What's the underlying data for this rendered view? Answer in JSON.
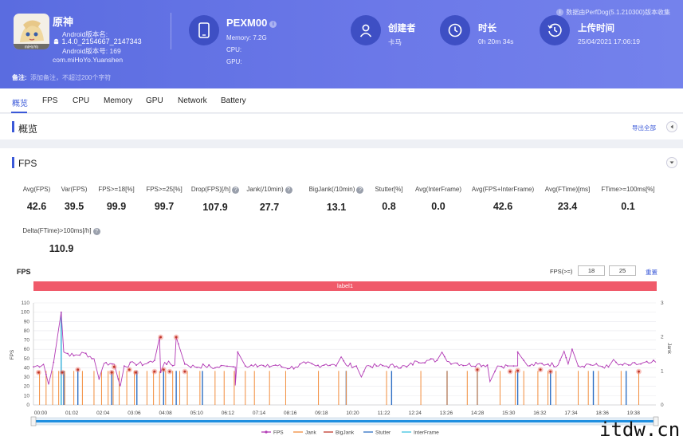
{
  "app": {
    "name": "原神",
    "android_version_label": "Android版本名:",
    "version_name": "1.4.0_2154667_2147343",
    "version_code_label": "Android版本号: 169",
    "package": "com.miHoYo.Yuanshen",
    "icon_text": "miHoYo"
  },
  "device": {
    "name": "PEXM00",
    "memory": "Memory: 7.2G",
    "cpu": "CPU:",
    "gpu": "GPU:"
  },
  "creator": {
    "title": "创建者",
    "value": "卡马"
  },
  "duration": {
    "title": "时长",
    "value": "0h 20m 34s"
  },
  "upload": {
    "title": "上传时间",
    "value": "25/04/2021 17:06:19"
  },
  "data_source": "数据由PerfDog(5.1.210300)版本收集",
  "note": {
    "label": "备注:",
    "placeholder": "添加备注，不超过200个字符"
  },
  "tabs": [
    "概览",
    "FPS",
    "CPU",
    "Memory",
    "GPU",
    "Network",
    "Battery"
  ],
  "overview": {
    "title": "概览",
    "export_label": "导出全部"
  },
  "fps_section": {
    "title": "FPS"
  },
  "metrics": [
    {
      "label": "Avg(FPS)",
      "value": "42.6",
      "help": false
    },
    {
      "label": "Var(FPS)",
      "value": "39.5",
      "help": false
    },
    {
      "label": "FPS>=18[%]",
      "value": "99.9",
      "help": false
    },
    {
      "label": "FPS>=25[%]",
      "value": "99.7",
      "help": false
    },
    {
      "label": "Drop(FPS)[/h]",
      "value": "107.9",
      "help": true
    },
    {
      "label": "Jank(/10min)",
      "value": "27.7",
      "help": true
    },
    {
      "label": "BigJank(/10min)",
      "value": "13.1",
      "help": true
    },
    {
      "label": "Stutter[%]",
      "value": "0.8",
      "help": false
    },
    {
      "label": "Avg(InterFrame)",
      "value": "0.0",
      "help": false
    },
    {
      "label": "Avg(FPS+InterFrame)",
      "value": "42.6",
      "help": false
    },
    {
      "label": "Avg(FTime)[ms]",
      "value": "23.4",
      "help": false
    },
    {
      "label": "FTime>=100ms[%]",
      "value": "0.1",
      "help": false
    },
    {
      "label": "Delta(FTime)>100ms[/h]",
      "value": "110.9",
      "help": true
    }
  ],
  "fps_threshold": {
    "label": "FPS(>=)",
    "value1": "18",
    "value2": "25",
    "reset_label": "重置"
  },
  "chart_data": {
    "type": "line",
    "title": "FPS",
    "label_bar": "label1",
    "ylabel": "FPS",
    "y2label": "Jank",
    "ylim": [
      0,
      110
    ],
    "y2lim": [
      0,
      3
    ],
    "yticks": [
      0,
      10,
      20,
      30,
      40,
      50,
      60,
      70,
      80,
      90,
      100,
      110
    ],
    "y2ticks": [
      0,
      1,
      2,
      3
    ],
    "xticks": [
      "00:00",
      "01:02",
      "02:04",
      "03:06",
      "04:08",
      "05:10",
      "06:12",
      "07:14",
      "08:16",
      "09:18",
      "10:20",
      "11:22",
      "12:24",
      "13:26",
      "14:28",
      "15:30",
      "16:32",
      "17:34",
      "18:36",
      "19:38"
    ],
    "duration_s": 1234,
    "fps_series": {
      "name": "FPS",
      "color": "#b23ab5",
      "points": [
        [
          0,
          41
        ],
        [
          20,
          44
        ],
        [
          40,
          46
        ],
        [
          60,
          57
        ],
        [
          80,
          53
        ],
        [
          100,
          56
        ],
        [
          120,
          50
        ],
        [
          140,
          45
        ],
        [
          160,
          44
        ],
        [
          180,
          42
        ],
        [
          200,
          45
        ],
        [
          220,
          44
        ],
        [
          240,
          48
        ],
        [
          260,
          46
        ],
        [
          280,
          43
        ],
        [
          300,
          44
        ],
        [
          320,
          41
        ],
        [
          340,
          42
        ],
        [
          360,
          40
        ],
        [
          380,
          42
        ],
        [
          400,
          41
        ],
        [
          420,
          42
        ],
        [
          440,
          44
        ],
        [
          460,
          41
        ],
        [
          480,
          43
        ],
        [
          500,
          40
        ],
        [
          520,
          41
        ],
        [
          540,
          45
        ],
        [
          560,
          42
        ],
        [
          580,
          44
        ],
        [
          600,
          42
        ],
        [
          620,
          43
        ],
        [
          640,
          42
        ],
        [
          660,
          42
        ],
        [
          680,
          42
        ],
        [
          700,
          42
        ],
        [
          720,
          42
        ],
        [
          740,
          41
        ],
        [
          760,
          47
        ],
        [
          780,
          48
        ],
        [
          800,
          48
        ],
        [
          820,
          47
        ],
        [
          840,
          45
        ],
        [
          860,
          43
        ],
        [
          880,
          44
        ],
        [
          900,
          43
        ],
        [
          920,
          42
        ],
        [
          940,
          42
        ],
        [
          960,
          42
        ],
        [
          980,
          42
        ],
        [
          1000,
          44
        ],
        [
          1020,
          44
        ],
        [
          1040,
          43
        ],
        [
          1060,
          44
        ],
        [
          1080,
          42
        ],
        [
          1100,
          44
        ],
        [
          1120,
          42
        ],
        [
          1140,
          41
        ],
        [
          1160,
          43
        ],
        [
          1180,
          43
        ],
        [
          1200,
          44
        ],
        [
          1220,
          45
        ],
        [
          1234,
          46
        ]
      ]
    },
    "fps_spikes": [
      [
        55,
        100
      ],
      [
        250,
        73
      ],
      [
        283,
        73
      ],
      [
        405,
        57
      ],
      [
        810,
        57
      ],
      [
        960,
        57
      ],
      [
        1052,
        58
      ],
      [
        1068,
        60
      ],
      [
        610,
        52
      ],
      [
        1150,
        49
      ]
    ],
    "fps_dips": [
      [
        30,
        22
      ],
      [
        130,
        28
      ],
      [
        172,
        20
      ],
      [
        252,
        35
      ],
      [
        400,
        21
      ],
      [
        650,
        30
      ],
      [
        905,
        25
      ]
    ],
    "jank_events": [
      [
        12,
        1
      ],
      [
        25,
        1
      ],
      [
        38,
        1
      ],
      [
        50,
        1
      ],
      [
        62,
        1
      ],
      [
        80,
        1
      ],
      [
        97,
        1
      ],
      [
        120,
        1
      ],
      [
        135,
        1
      ],
      [
        148,
        1
      ],
      [
        158,
        1
      ],
      [
        170,
        1
      ],
      [
        185,
        1
      ],
      [
        200,
        1
      ],
      [
        225,
        1
      ],
      [
        238,
        1
      ],
      [
        250,
        1
      ],
      [
        262,
        1
      ],
      [
        276,
        1
      ],
      [
        290,
        1
      ],
      [
        305,
        1
      ],
      [
        330,
        1
      ],
      [
        360,
        1
      ],
      [
        378,
        1
      ],
      [
        398,
        1
      ],
      [
        420,
        1
      ],
      [
        438,
        1
      ],
      [
        468,
        1
      ],
      [
        500,
        1
      ],
      [
        565,
        1
      ],
      [
        605,
        1
      ],
      [
        620,
        1
      ],
      [
        700,
        1
      ],
      [
        768,
        1
      ],
      [
        820,
        1
      ],
      [
        860,
        1
      ],
      [
        880,
        1
      ],
      [
        925,
        1
      ],
      [
        955,
        1
      ],
      [
        972,
        1
      ],
      [
        1000,
        1
      ],
      [
        1020,
        1
      ],
      [
        1036,
        1
      ],
      [
        1080,
        1
      ],
      [
        1100,
        1
      ],
      [
        1120,
        1
      ],
      [
        1165,
        1
      ],
      [
        1200,
        1
      ]
    ],
    "bigjank_markers": [
      [
        10,
        35
      ],
      [
        57,
        35
      ],
      [
        88,
        38
      ],
      [
        155,
        35
      ],
      [
        160,
        41
      ],
      [
        190,
        38
      ],
      [
        203,
        35
      ],
      [
        240,
        36
      ],
      [
        252,
        73
      ],
      [
        258,
        38
      ],
      [
        270,
        36
      ],
      [
        283,
        73
      ],
      [
        300,
        36
      ],
      [
        880,
        38
      ],
      [
        945,
        36
      ],
      [
        960,
        37
      ],
      [
        1005,
        38
      ],
      [
        1025,
        36
      ],
      [
        1200,
        36
      ]
    ],
    "stutter_events": [
      [
        55,
        2.7
      ],
      [
        60,
        1
      ],
      [
        88,
        1
      ],
      [
        155,
        1
      ],
      [
        205,
        1
      ],
      [
        258,
        1
      ],
      [
        283,
        1
      ],
      [
        335,
        1
      ],
      [
        620,
        1
      ],
      [
        710,
        1
      ],
      [
        820,
        1
      ],
      [
        880,
        1
      ],
      [
        960,
        1
      ],
      [
        1025,
        1
      ],
      [
        1110,
        1
      ],
      [
        1175,
        1
      ]
    ],
    "legend": [
      {
        "name": "FPS",
        "color": "#b23ab5"
      },
      {
        "name": "Jank",
        "color": "#f28c3b"
      },
      {
        "name": "BigJank",
        "color": "#c0392b"
      },
      {
        "name": "Stutter",
        "color": "#2e6fc4"
      },
      {
        "name": "InterFrame",
        "color": "#3fc2e0"
      }
    ]
  },
  "watermark": "itdw.cn"
}
